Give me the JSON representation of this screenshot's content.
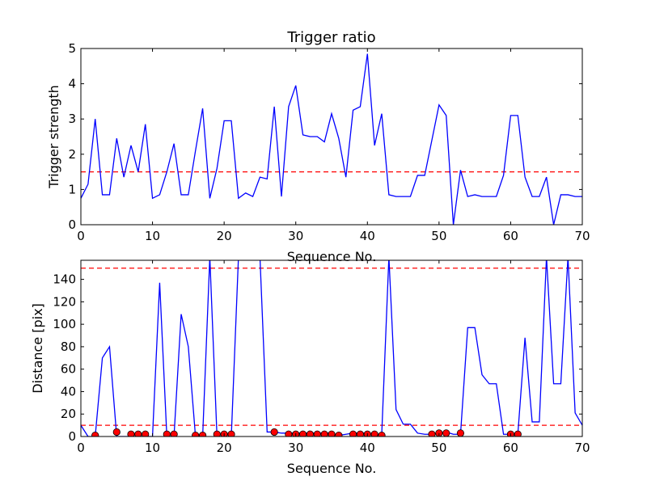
{
  "chart_data": [
    {
      "type": "line",
      "title": "Trigger ratio",
      "xlabel": "Sequence No.",
      "ylabel": "Trigger strength",
      "xlim": [
        0,
        70
      ],
      "ylim": [
        0,
        5
      ],
      "xticks": [
        "0",
        "10",
        "20",
        "30",
        "40",
        "50",
        "60",
        "70"
      ],
      "yticks": [
        "0",
        "1",
        "2",
        "3",
        "4",
        "5"
      ],
      "grid": false,
      "colors": {
        "line": "#0000ff",
        "threshold": "#ff0000"
      },
      "series": [
        {
          "x": [
            0,
            1,
            2,
            3,
            4,
            5,
            6,
            7,
            8,
            9,
            10,
            11,
            12,
            13,
            14,
            15,
            16,
            17,
            18,
            19,
            20,
            21,
            22,
            23,
            24,
            25,
            26,
            27,
            28,
            29,
            30,
            31,
            32,
            33,
            34,
            35,
            36,
            37,
            38,
            39,
            40,
            41,
            42,
            43,
            44,
            45,
            46,
            47,
            48,
            49,
            50,
            51,
            52,
            53,
            54,
            55,
            56,
            57,
            58,
            59,
            60,
            61,
            62,
            63,
            64,
            65,
            66,
            67,
            68,
            69,
            70
          ],
          "values": [
            0.75,
            1.15,
            3.0,
            0.85,
            0.85,
            2.45,
            1.35,
            2.25,
            1.5,
            2.85,
            0.75,
            0.85,
            1.5,
            2.3,
            0.85,
            0.85,
            2.1,
            3.3,
            0.75,
            1.6,
            2.95,
            2.95,
            0.75,
            0.9,
            0.8,
            1.35,
            1.3,
            3.35,
            0.8,
            3.35,
            3.95,
            2.55,
            2.5,
            2.5,
            2.35,
            3.15,
            2.45,
            1.35,
            3.25,
            3.35,
            4.85,
            2.25,
            3.15,
            0.85,
            0.8,
            0.8,
            0.8,
            1.4,
            1.4,
            2.4,
            3.4,
            3.1,
            0.0,
            1.55,
            0.8,
            0.85,
            0.8,
            0.8,
            0.8,
            1.4,
            3.1,
            3.1,
            1.35,
            0.8,
            0.8,
            1.35,
            0.0,
            0.85,
            0.85,
            0.8,
            0.8
          ]
        }
      ],
      "threshold": 1.5
    },
    {
      "type": "line",
      "title": "",
      "xlabel": "Sequence No.",
      "ylabel": "Distance [pix]",
      "xlim": [
        0,
        70
      ],
      "ylim": [
        0,
        157
      ],
      "xticks": [
        "0",
        "10",
        "20",
        "30",
        "40",
        "50",
        "60",
        "70"
      ],
      "yticks": [
        "0",
        "20",
        "40",
        "60",
        "80",
        "100",
        "120",
        "140"
      ],
      "grid": false,
      "colors": {
        "line": "#0000ff",
        "threshold": "#ff0000",
        "marker": "#ff0000"
      },
      "series": [
        {
          "x": [
            0,
            1,
            2,
            3,
            4,
            5,
            6,
            7,
            8,
            9,
            10,
            11,
            12,
            13,
            14,
            15,
            16,
            17,
            18,
            19,
            20,
            21,
            22,
            23,
            24,
            25,
            26,
            27,
            28,
            29,
            30,
            31,
            32,
            33,
            34,
            35,
            36,
            37,
            38,
            39,
            40,
            41,
            42,
            43,
            44,
            45,
            46,
            47,
            48,
            49,
            50,
            51,
            52,
            53,
            54,
            55,
            56,
            57,
            58,
            59,
            60,
            61,
            62,
            63,
            64,
            65,
            66,
            67,
            68,
            69,
            70
          ],
          "values": [
            10,
            0,
            0,
            70,
            80,
            0,
            0,
            0,
            0,
            0,
            0,
            137,
            0,
            0,
            109,
            80,
            0,
            0,
            160,
            0,
            0,
            0,
            160,
            160,
            160,
            160,
            4,
            4,
            3,
            3,
            3,
            3,
            3,
            3,
            3,
            3,
            1,
            2,
            3,
            3,
            3,
            2,
            2,
            160,
            24,
            11,
            11,
            3,
            2,
            2,
            3,
            4,
            2,
            2,
            97,
            97,
            55,
            47,
            47,
            2,
            2,
            2,
            88,
            13,
            13,
            160,
            47,
            47,
            160,
            21,
            10
          ]
        },
        {
          "name": "",
          "x": [
            2,
            5,
            7,
            8,
            9,
            12,
            13,
            16,
            17,
            19,
            20,
            21,
            27,
            29,
            30,
            31,
            32,
            33,
            34,
            35,
            36,
            38,
            39,
            40,
            41,
            42,
            49,
            50,
            51,
            53,
            60,
            61
          ],
          "values": [
            1,
            4,
            2,
            2,
            2,
            2,
            2,
            1,
            1,
            2,
            2,
            2,
            4,
            2,
            2,
            2,
            2,
            2,
            2,
            2,
            1,
            2,
            2,
            2,
            2,
            1,
            2,
            3,
            3,
            3,
            2,
            2
          ],
          "marker": "circle"
        }
      ],
      "thresholds": [
        10,
        150
      ]
    }
  ]
}
